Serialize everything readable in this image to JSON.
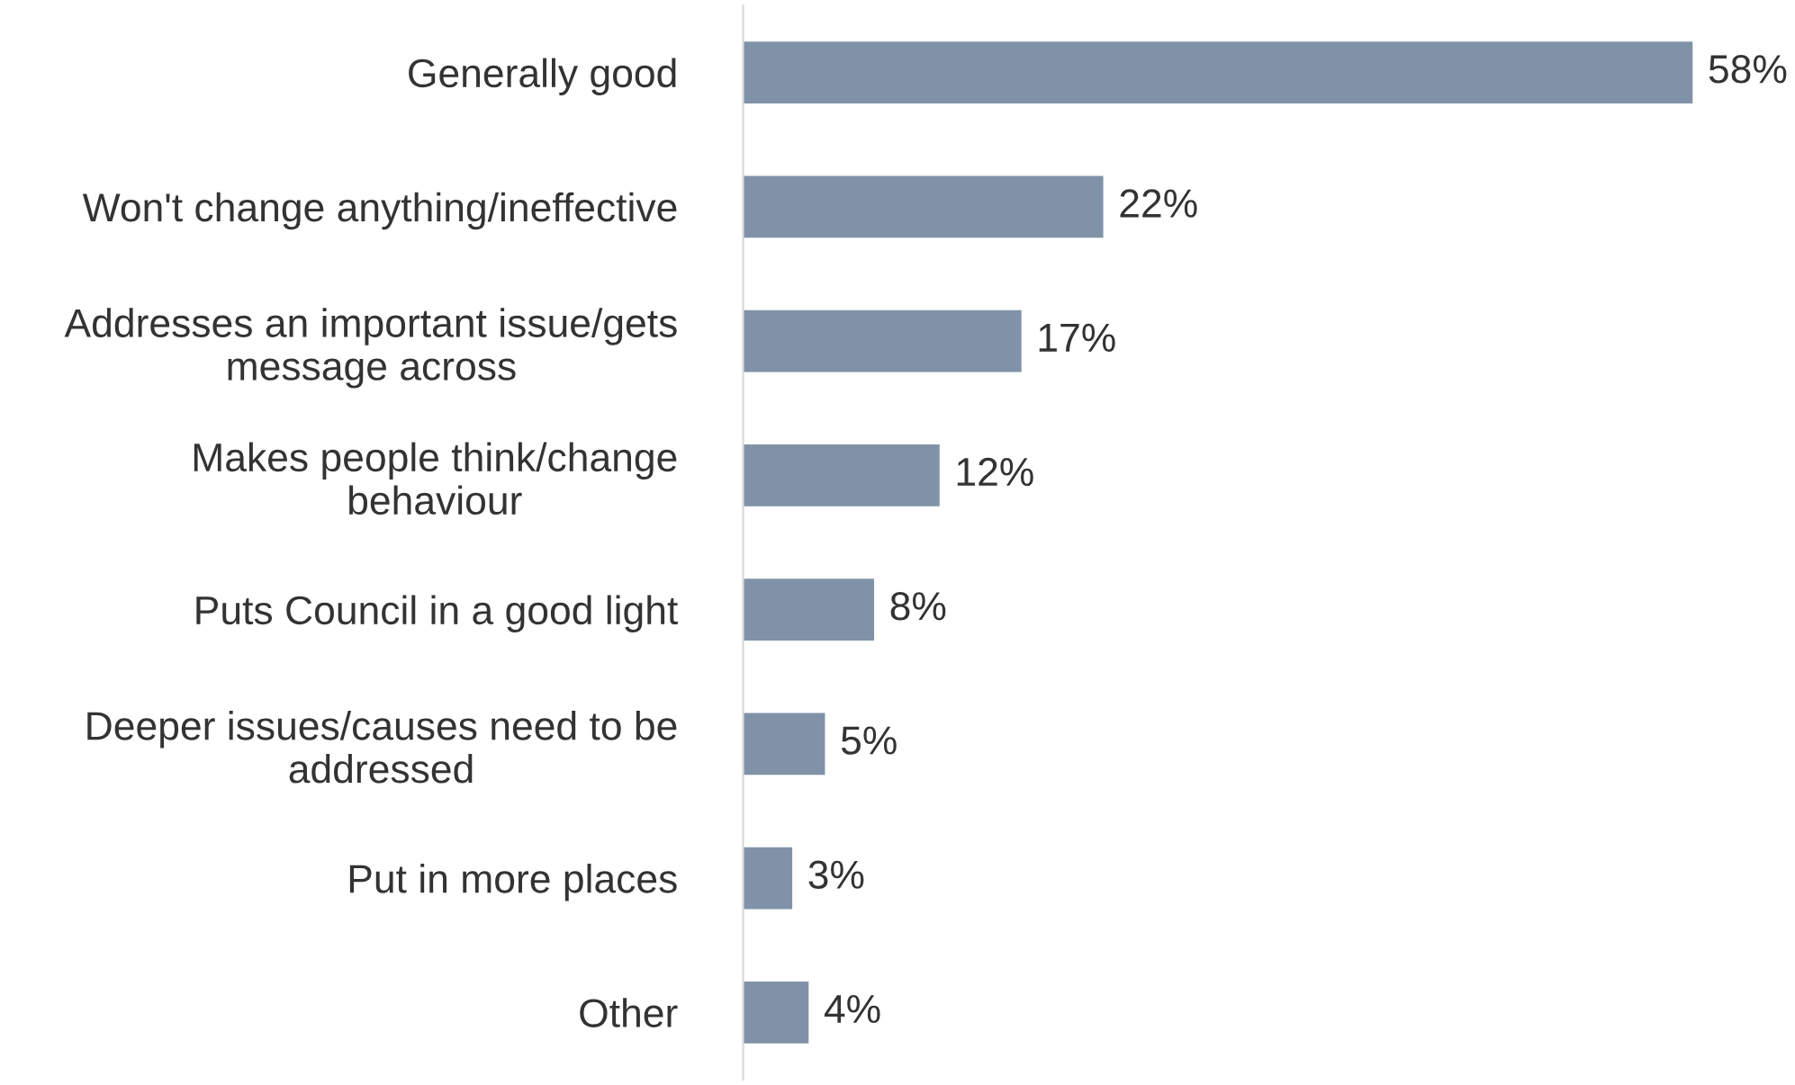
{
  "chart_data": {
    "type": "bar",
    "orientation": "horizontal",
    "categories": [
      "Generally good",
      "Won't change anything/ineffective",
      "Addresses an important issue/gets\nmessage across",
      "Makes people think/change\nbehaviour",
      "Puts Council in a good light",
      "Deeper issues/causes need to be\naddressed",
      "Put in more places",
      "Other"
    ],
    "values": [
      58,
      22,
      17,
      12,
      8,
      5,
      3,
      4
    ],
    "value_labels": [
      "58%",
      "22%",
      "17%",
      "12%",
      "8%",
      "5%",
      "3%",
      "4%"
    ],
    "color": "#7f92a8",
    "grid": false,
    "legend": false
  }
}
